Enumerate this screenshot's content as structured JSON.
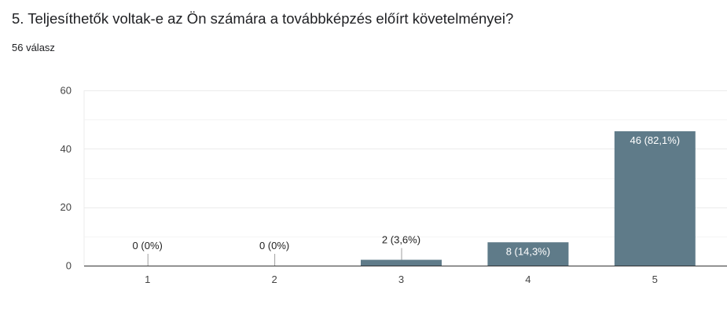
{
  "question": {
    "title": "5. Teljesíthetők voltak-e az Ön számára a továbbképzés előírt követelményei?",
    "response_count": "56 válasz"
  },
  "colors": {
    "bar": "#5f7b89",
    "grid": "#ebebeb",
    "axis": "#333333",
    "label_outside": "#222222",
    "label_inside": "#ffffff"
  },
  "chart_data": {
    "type": "bar",
    "categories": [
      "1",
      "2",
      "3",
      "4",
      "5"
    ],
    "values": [
      0,
      0,
      2,
      8,
      46
    ],
    "data_labels": [
      "0 (0%)",
      "0 (0%)",
      "2 (3,6%)",
      "8 (14,3%)",
      "46 (82,1%)"
    ],
    "ylim": [
      0,
      60
    ],
    "yticks": [
      0,
      20,
      40,
      60
    ],
    "grid": true,
    "minor_grid": true,
    "legend": "none"
  }
}
